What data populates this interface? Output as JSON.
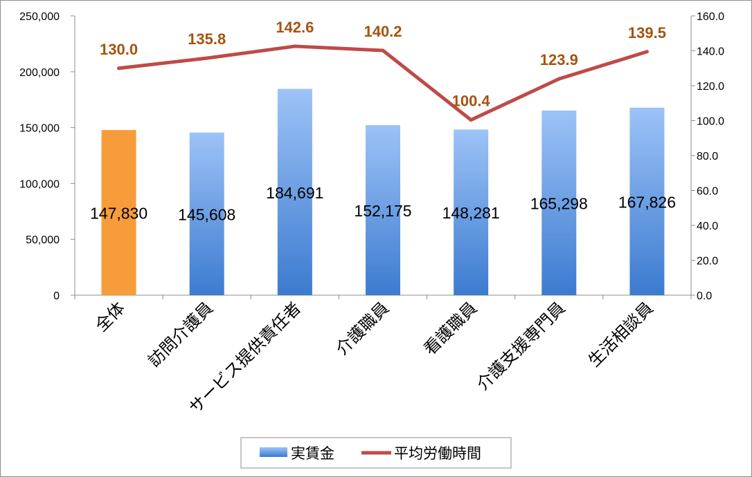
{
  "chart_data": {
    "type": "bar",
    "categories": [
      "全体",
      "訪問介護員",
      "サービス提供責任者",
      "介護職員",
      "看護職員",
      "介護支援専門員",
      "生活相談員"
    ],
    "series": [
      {
        "name": "実賃金",
        "type": "bar",
        "axis": "left",
        "values": [
          147830,
          145608,
          184691,
          152175,
          148281,
          165298,
          167826
        ],
        "labels": [
          "147,830",
          "145,608",
          "184,691",
          "152,175",
          "148,281",
          "165,298",
          "167,826"
        ]
      },
      {
        "name": "平均労働時間",
        "type": "line",
        "axis": "right",
        "values": [
          130.0,
          135.8,
          142.6,
          140.2,
          100.4,
          123.9,
          139.5
        ],
        "labels": [
          "130.0",
          "135.8",
          "142.6",
          "140.2",
          "100.4",
          "123.9",
          "139.5"
        ]
      }
    ],
    "left_axis": {
      "ylim": [
        0,
        250000
      ],
      "ticks": [
        "0",
        "50,000",
        "100,000",
        "150,000",
        "200,000",
        "250,000"
      ]
    },
    "right_axis": {
      "ylim": [
        0,
        160
      ],
      "ticks": [
        "0.0",
        "20.0",
        "40.0",
        "60.0",
        "80.0",
        "100.0",
        "120.0",
        "140.0",
        "160.0"
      ]
    },
    "highlight_category": "全体",
    "colors": {
      "highlight_bar": "#f79c3a",
      "bar_top": "#9dc3f7",
      "bar_bottom": "#3c7bd0",
      "line": "#be4b48",
      "line_label": "#a5530f",
      "axis": "#8c8c8c"
    },
    "grid": false,
    "legend_position": "bottom"
  },
  "legend": {
    "bar_label": "実賃金",
    "line_label": "平均労働時間"
  }
}
